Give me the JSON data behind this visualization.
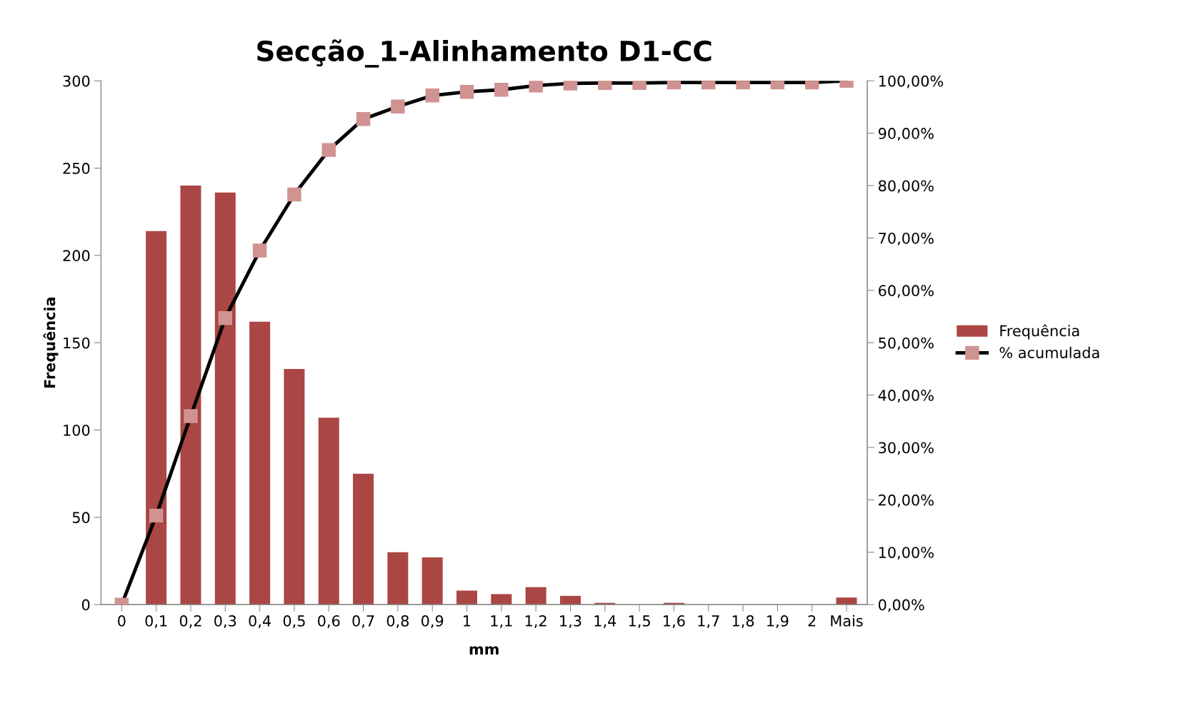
{
  "chart_data": {
    "type": "bar",
    "title": "Secção_1-Alinhamento D1-CC",
    "xlabel": "mm",
    "ylabel": "Frequência",
    "categories": [
      "0",
      "0,1",
      "0,2",
      "0,3",
      "0,4",
      "0,5",
      "0,6",
      "0,7",
      "0,8",
      "0,9",
      "1",
      "1,1",
      "1,2",
      "1,3",
      "1,4",
      "1,5",
      "1,6",
      "1,7",
      "1,8",
      "1,9",
      "2",
      "Mais"
    ],
    "series": [
      {
        "name": "Frequência",
        "color": "#aa4643",
        "values": [
          0,
          214,
          240,
          236,
          162,
          135,
          107,
          75,
          30,
          27,
          8,
          6,
          10,
          5,
          1,
          0,
          1,
          0,
          0,
          0,
          0,
          4
        ]
      },
      {
        "name": "% acumulada",
        "type": "line",
        "axis": "y2",
        "color": "#000000",
        "marker": "square",
        "values": [
          0,
          17.0,
          36.0,
          54.7,
          67.6,
          78.3,
          86.8,
          92.7,
          95.1,
          97.2,
          97.9,
          98.3,
          99.1,
          99.5,
          99.6,
          99.6,
          99.7,
          99.7,
          99.7,
          99.7,
          99.7,
          100
        ]
      }
    ],
    "ylim": [
      0,
      300
    ],
    "yticks": [
      0,
      50,
      100,
      150,
      200,
      250,
      300
    ],
    "y2lim": [
      0,
      100
    ],
    "y2ticks": [
      {
        "value": 0,
        "label": "0,00%"
      },
      {
        "value": 10,
        "label": "10,00%"
      },
      {
        "value": 20,
        "label": "20,00%"
      },
      {
        "value": 30,
        "label": "30,00%"
      },
      {
        "value": 40,
        "label": "40,00%"
      },
      {
        "value": 50,
        "label": "50,00%"
      },
      {
        "value": 60,
        "label": "60,00%"
      },
      {
        "value": 70,
        "label": "70,00%"
      },
      {
        "value": 80,
        "label": "80,00%"
      },
      {
        "value": 90,
        "label": "90,00%"
      },
      {
        "value": 100,
        "label": "100,00%"
      }
    ],
    "grid": false,
    "legend": "right"
  }
}
